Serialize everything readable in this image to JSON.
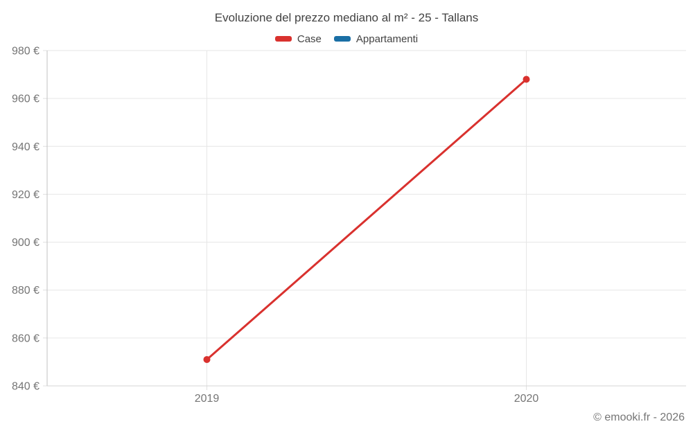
{
  "chart_data": {
    "type": "line",
    "title": "Evoluzione del prezzo mediano al m² - 25 - Tallans",
    "categories": [
      "2019",
      "2020"
    ],
    "series": [
      {
        "name": "Case",
        "color": "#d9312e",
        "values": [
          851,
          968
        ]
      },
      {
        "name": "Appartamenti",
        "color": "#1a6fa5",
        "values": []
      }
    ],
    "ylim": [
      840,
      980
    ],
    "y_tick_step": 20,
    "y_tick_labels": [
      "840 €",
      "860 €",
      "880 €",
      "900 €",
      "920 €",
      "940 €",
      "960 €",
      "980 €"
    ],
    "x_tick_labels": [
      "2019",
      "2020"
    ],
    "grid": true,
    "legend_position": "top"
  },
  "colors": {
    "grid_line": "#e6e6e6",
    "y_axis_line": "#c2c2c2",
    "x_axis_line": "#d4d4d4",
    "tick": "#e0e0e0",
    "axis_label_text": "#757575",
    "title_text": "#424242"
  },
  "footer": {
    "copyright": "© emooki.fr - 2026"
  }
}
